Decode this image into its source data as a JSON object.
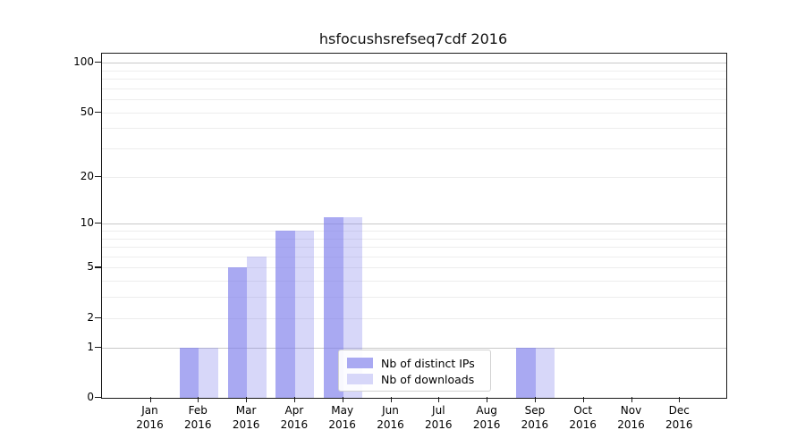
{
  "chart_data": {
    "type": "bar",
    "title": "hsfocushsrefseq7cdf 2016",
    "categories": [
      "Jan",
      "Feb",
      "Mar",
      "Apr",
      "May",
      "Jun",
      "Jul",
      "Aug",
      "Sep",
      "Oct",
      "Nov",
      "Dec"
    ],
    "category_sublabel": "2016",
    "series": [
      {
        "name": "Nb of distinct IPs",
        "bar_color": "rgba(125,125,235,0.66)",
        "legend_color": "#a9a9f2",
        "values": [
          0,
          1,
          5,
          9,
          11,
          0,
          0,
          0,
          1,
          0,
          0,
          0
        ]
      },
      {
        "name": "Nb of downloads",
        "bar_color": "rgba(125,125,235,0.31)",
        "legend_color": "#d7d7f9",
        "values": [
          0,
          1,
          6,
          9,
          11,
          0,
          0,
          0,
          1,
          0,
          0,
          0
        ]
      }
    ],
    "y_axis": {
      "scale": "log1p",
      "tick_values": [
        0,
        1,
        2,
        5,
        10,
        20,
        50,
        100
      ],
      "major_gridlines": [
        1,
        10,
        100
      ],
      "minor_gridlines": [
        2,
        3,
        4,
        5,
        6,
        7,
        8,
        9,
        20,
        30,
        40,
        50,
        60,
        70,
        80,
        90
      ],
      "ymin": 0,
      "ymax": 100
    },
    "legend_position": "lower center",
    "grid": true
  },
  "colors": {
    "major_grid": "#c9c9c9",
    "minor_grid": "#ededed",
    "spine": "#1a1a1a",
    "background": "#ffffff"
  }
}
